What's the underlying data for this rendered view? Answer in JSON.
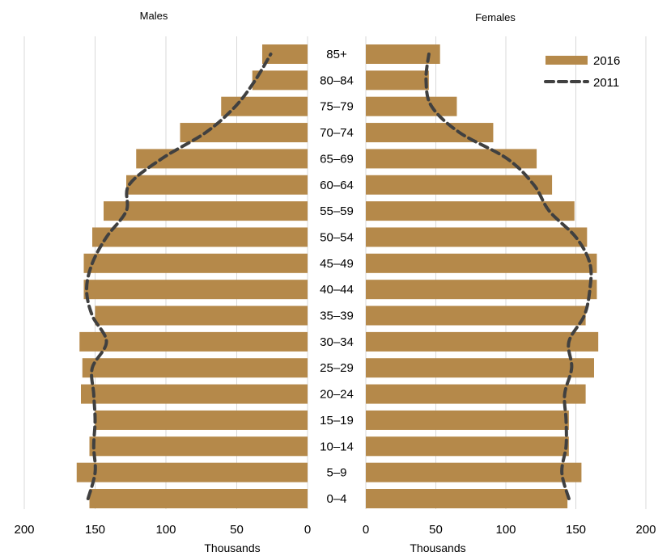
{
  "chart_data": {
    "type": "bar",
    "orientation": "horizontal",
    "layout": "population-pyramid",
    "categories": [
      "0–4",
      "5–9",
      "10–14",
      "15–19",
      "20–24",
      "25–29",
      "30–34",
      "35–39",
      "40–44",
      "45–49",
      "50–54",
      "55–59",
      "60–64",
      "65–69",
      "70–74",
      "75–79",
      "80–84",
      "85+"
    ],
    "panels": [
      {
        "key": "males",
        "title": "Males",
        "direction": "left"
      },
      {
        "key": "females",
        "title": "Females",
        "direction": "right"
      }
    ],
    "series": [
      {
        "name": "2016",
        "mark": "bar",
        "color": "#B5894A",
        "males": [
          154,
          163,
          154,
          150,
          160,
          159,
          161,
          150,
          158,
          158,
          152,
          144,
          128,
          121,
          90,
          61,
          39,
          32
        ],
        "females": [
          144,
          154,
          145,
          145,
          157,
          163,
          166,
          157,
          165,
          165,
          158,
          149,
          133,
          122,
          91,
          65,
          45,
          53
        ]
      },
      {
        "name": "2011",
        "mark": "dashed-line",
        "color": "#404040",
        "males": [
          155,
          150,
          151,
          150,
          151,
          152,
          142,
          152,
          156,
          152,
          142,
          128,
          126,
          103,
          72,
          51,
          37,
          26
        ],
        "females": [
          145,
          140,
          143,
          143,
          142,
          147,
          145,
          156,
          160,
          160,
          150,
          131,
          120,
          101,
          67,
          47,
          43,
          45
        ]
      }
    ],
    "xlim": [
      0,
      200
    ],
    "xticks": [
      200,
      150,
      100,
      50,
      0
    ],
    "xticks_right": [
      0,
      50,
      100,
      150,
      200
    ],
    "xlabel": "Thousands",
    "grid": "vertical",
    "legend": "top-right"
  }
}
